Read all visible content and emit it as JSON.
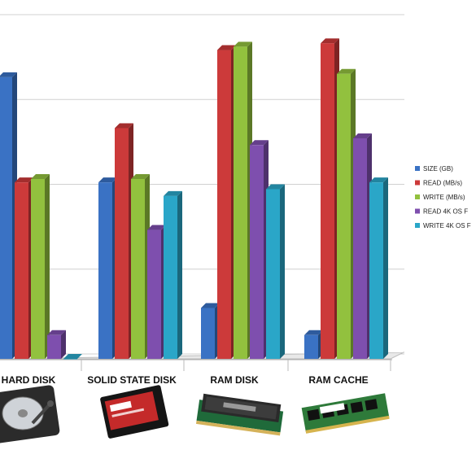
{
  "chart_data": {
    "type": "bar",
    "categories": [
      "HARD DISK",
      "SOLID STATE DISK",
      "RAM DISK",
      "RAM CACHE"
    ],
    "series": [
      {
        "name": "SIZE (GB)",
        "color": "#3a72c4",
        "values": [
          0.83,
          0.52,
          0.15,
          0.07
        ]
      },
      {
        "name": "READ (MB/s)",
        "color": "#cc3a3a",
        "values": [
          0.52,
          0.68,
          0.91,
          0.93
        ]
      },
      {
        "name": "WRITE (MB/s)",
        "color": "#92c13e",
        "values": [
          0.53,
          0.53,
          0.92,
          0.84
        ]
      },
      {
        "name": "READ 4K OS F",
        "color": "#7e4fae",
        "values": [
          0.07,
          0.38,
          0.63,
          0.65
        ]
      },
      {
        "name": "WRITE 4K OS F",
        "color": "#2aa6c8",
        "values": [
          0.0,
          0.48,
          0.5,
          0.52
        ]
      }
    ],
    "ylim": [
      0,
      1
    ],
    "grid": true,
    "legend": "right",
    "images": [
      {
        "category": "HARD DISK",
        "icon": "hard-disk-icon"
      },
      {
        "category": "SOLID STATE DISK",
        "icon": "ssd-icon"
      },
      {
        "category": "RAM DISK",
        "icon": "ram-module-icon"
      },
      {
        "category": "RAM CACHE",
        "icon": "ram-stick-icon"
      }
    ]
  }
}
